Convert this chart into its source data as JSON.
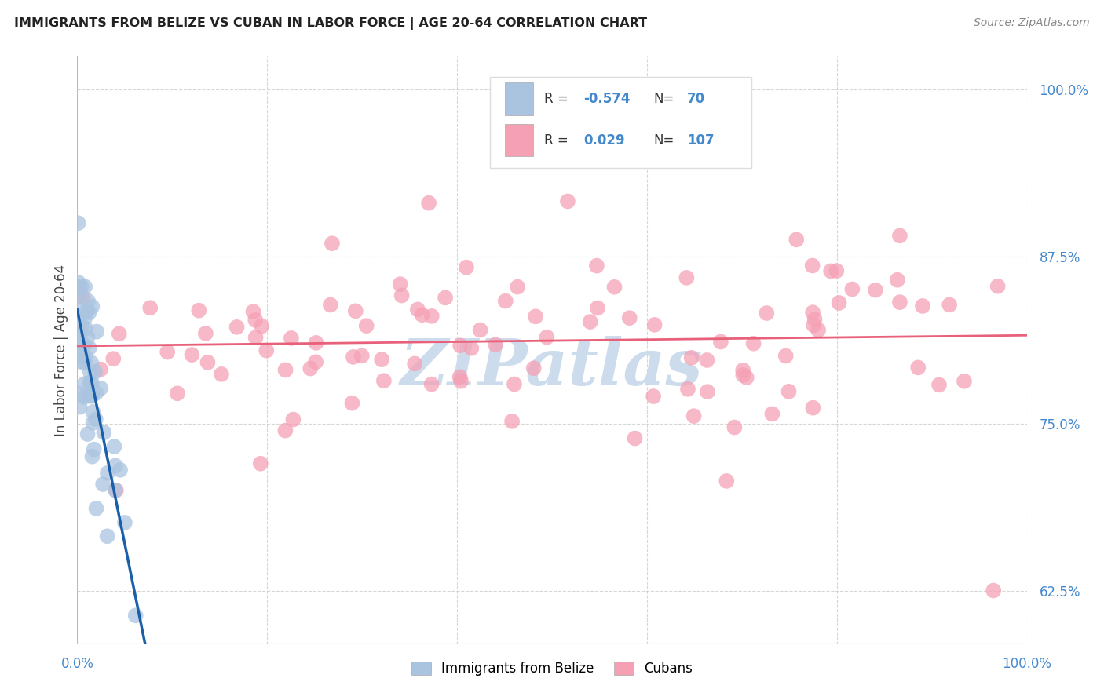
{
  "title": "IMMIGRANTS FROM BELIZE VS CUBAN IN LABOR FORCE | AGE 20-64 CORRELATION CHART",
  "source": "Source: ZipAtlas.com",
  "ylabel": "In Labor Force | Age 20-64",
  "xlim": [
    0.0,
    1.0
  ],
  "ylim": [
    0.585,
    1.025
  ],
  "y_ticks_right": [
    0.625,
    0.75,
    0.875,
    1.0
  ],
  "y_tick_labels_right": [
    "62.5%",
    "75.0%",
    "87.5%",
    "100.0%"
  ],
  "belize_R": -0.574,
  "belize_N": 70,
  "cuban_R": 0.029,
  "cuban_N": 107,
  "belize_color": "#aac4e0",
  "belize_edge_color": "#aac4e0",
  "belize_line_color": "#1a5fa8",
  "cuban_color": "#f5a0b5",
  "cuban_edge_color": "#f5a0b5",
  "cuban_line_color": "#e8607a",
  "watermark_text": "ZIPatlas",
  "watermark_color": "#ccdcec",
  "background_color": "#ffffff",
  "grid_color": "#cccccc",
  "legend_text_color": "#333333",
  "legend_value_color": "#4488cc",
  "axis_label_color": "#4488cc",
  "title_color": "#222222",
  "source_color": "#888888"
}
